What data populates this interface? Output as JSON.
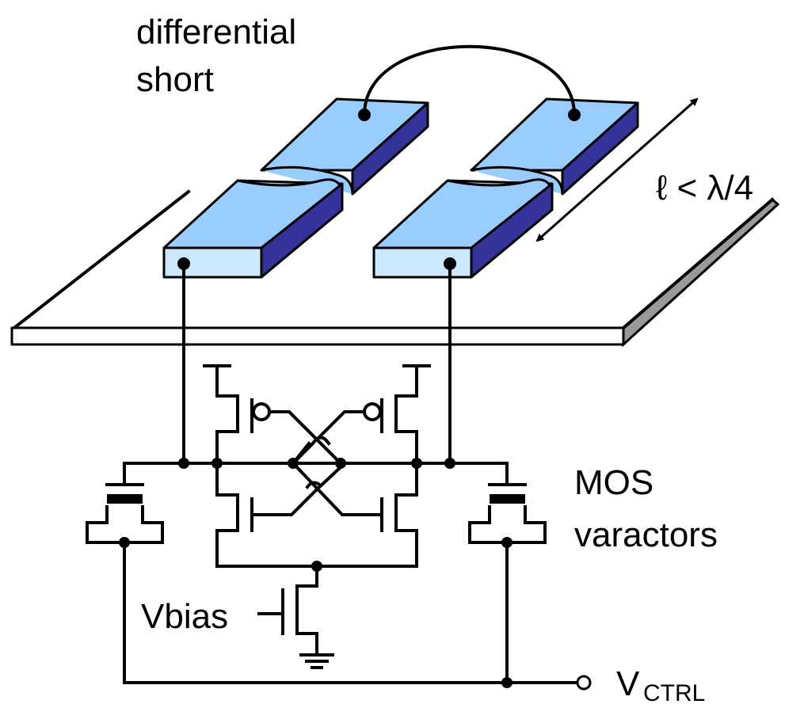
{
  "labels": {
    "short": [
      "differential",
      "short"
    ],
    "length": "ℓ < λ/4",
    "varactors": [
      "MOS",
      "varactors"
    ],
    "vbias": "Vbias",
    "vctrl": {
      "main": "V",
      "sub": "CTRL"
    }
  }
}
